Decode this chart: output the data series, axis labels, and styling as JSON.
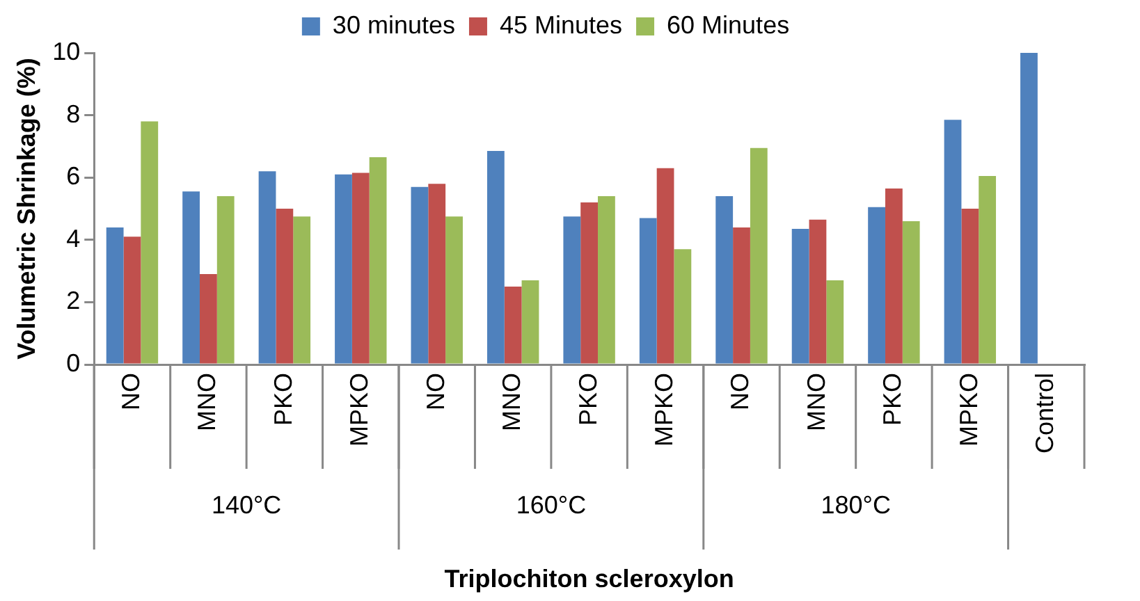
{
  "chart_data": {
    "type": "bar",
    "xlabel": "Triplochiton scleroxylon",
    "ylabel": "Volumetric Shrinkage (%)",
    "categories": [
      "NO",
      "MNO",
      "PKO",
      "MPKO",
      "NO",
      "MNO",
      "PKO",
      "MPKO",
      "NO",
      "MNO",
      "PKO",
      "MPKO",
      "Control"
    ],
    "series": [
      {
        "name": "30 minutes",
        "color": "#4f81bd",
        "values": [
          4.4,
          5.55,
          6.2,
          6.1,
          5.7,
          6.85,
          4.75,
          4.7,
          5.4,
          4.35,
          5.05,
          7.85,
          10
        ]
      },
      {
        "name": "45 Minutes",
        "color": "#c0504d",
        "values": [
          4.1,
          2.9,
          5.0,
          6.15,
          5.8,
          2.5,
          5.2,
          6.3,
          4.4,
          4.65,
          5.65,
          5.0,
          null
        ]
      },
      {
        "name": "60 Minutes",
        "color": "#9bbb59",
        "values": [
          7.8,
          5.4,
          4.75,
          6.65,
          4.75,
          2.7,
          5.4,
          3.7,
          6.95,
          2.7,
          4.6,
          6.05,
          null
        ]
      }
    ],
    "annotations": [
      "140°C",
      "160°C",
      "180°C"
    ],
    "ylim": [
      0,
      10
    ],
    "yticks": [
      0,
      2,
      4,
      6,
      8,
      10
    ],
    "grid": false,
    "legend": "top"
  }
}
